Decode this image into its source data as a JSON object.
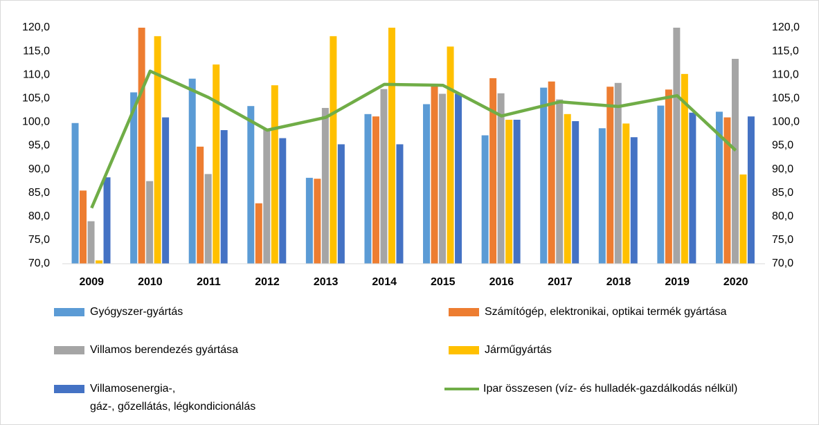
{
  "chart_data": {
    "type": "bar",
    "categories": [
      "2009",
      "2010",
      "2011",
      "2012",
      "2013",
      "2014",
      "2015",
      "2016",
      "2017",
      "2018",
      "2019",
      "2020"
    ],
    "series": [
      {
        "name": "Gyógyszer-gyártás",
        "color": "#5b9bd5",
        "values": [
          99.8,
          106.3,
          109.2,
          103.4,
          88.2,
          101.7,
          103.8,
          97.2,
          107.3,
          98.7,
          103.5,
          102.2
        ]
      },
      {
        "name": "Számítógép, elektronikai, optikai termék gyártása",
        "color": "#ed7d31",
        "values": [
          85.5,
          120.0,
          94.8,
          82.8,
          88.0,
          101.2,
          107.7,
          109.3,
          108.6,
          107.5,
          106.9,
          101.0
        ]
      },
      {
        "name": "Villamos berendezés gyártása",
        "color": "#a5a5a5",
        "values": [
          79.0,
          87.5,
          89.0,
          98.6,
          103.0,
          107.0,
          106.0,
          106.1,
          104.8,
          108.3,
          120.0,
          113.4
        ]
      },
      {
        "name": "Járműgyártás",
        "color": "#ffc000",
        "values": [
          70.7,
          118.2,
          112.2,
          107.8,
          118.2,
          120.0,
          116.0,
          100.5,
          101.7,
          99.7,
          110.2,
          88.9
        ]
      },
      {
        "name": "Villamosenergia-,\ngáz-, gőzellátás, légkondicionálás",
        "color": "#4472c4",
        "values": [
          88.3,
          101.0,
          98.3,
          96.6,
          95.3,
          95.3,
          106.0,
          100.5,
          100.2,
          96.8,
          102.0,
          101.2
        ]
      },
      {
        "name": "Ipar összesen (víz- és hulladék-gazdálkodás nélkül)",
        "color": "#70ad47",
        "type": "line",
        "axis": "y2",
        "values": [
          81.8,
          110.8,
          105.2,
          98.3,
          101.0,
          108.0,
          107.8,
          101.3,
          104.3,
          103.3,
          105.6,
          94.0
        ]
      }
    ],
    "ylim": [
      70,
      120
    ],
    "yticks": [
      {
        "value": 70,
        "label": "70,0"
      },
      {
        "value": 75,
        "label": "75,0"
      },
      {
        "value": 80,
        "label": "80,0"
      },
      {
        "value": 85,
        "label": "85,0"
      },
      {
        "value": 90,
        "label": "90,0"
      },
      {
        "value": 95,
        "label": "95,0"
      },
      {
        "value": 100,
        "label": "100,0"
      },
      {
        "value": 105,
        "label": "105,0"
      },
      {
        "value": 110,
        "label": "110,0"
      },
      {
        "value": 115,
        "label": "115,0"
      },
      {
        "value": 120,
        "label": "120,0"
      }
    ],
    "y2lim": [
      70,
      120
    ],
    "y2ticks": [
      {
        "value": 70,
        "label": "70,0"
      },
      {
        "value": 75,
        "label": "75,0"
      },
      {
        "value": 80,
        "label": "80,0"
      },
      {
        "value": 85,
        "label": "85,0"
      },
      {
        "value": 90,
        "label": "90,0"
      },
      {
        "value": 95,
        "label": "95,0"
      },
      {
        "value": 100,
        "label": "100,0"
      },
      {
        "value": 105,
        "label": "105,0"
      },
      {
        "value": 110,
        "label": "110,0"
      },
      {
        "value": 115,
        "label": "115,0"
      },
      {
        "value": 120,
        "label": "120,0"
      }
    ],
    "grid": false
  }
}
